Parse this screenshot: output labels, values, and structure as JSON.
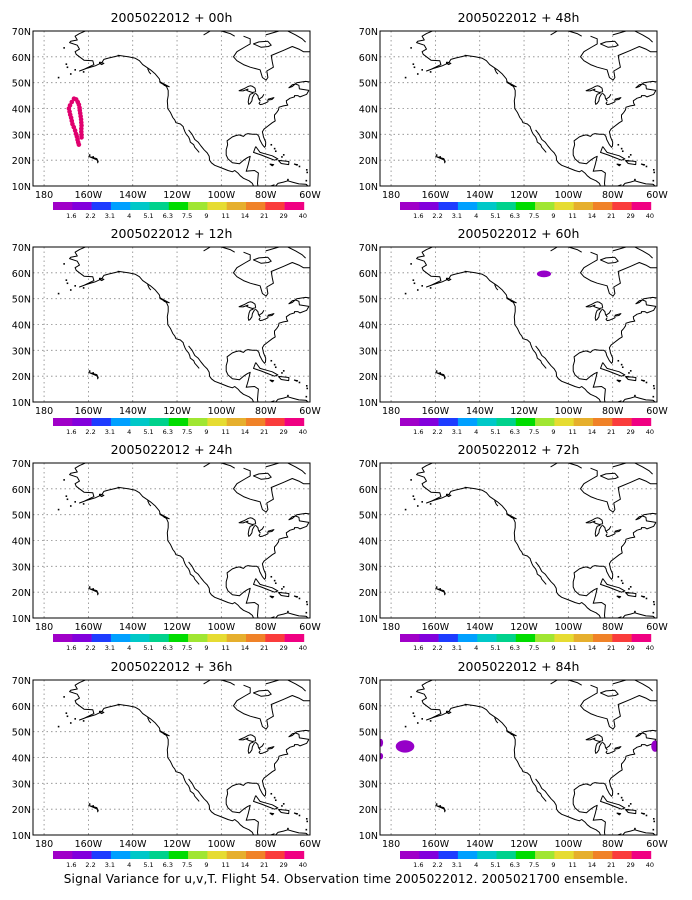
{
  "footer": "Signal Variance for u,v,T. Flight 54. Observation time 2005022012. 2005021700 ensemble.",
  "colors": {
    "background": "#ffffff",
    "coast": "#000000",
    "grid": "#888888",
    "scale": [
      "#a000c8",
      "#8200dc",
      "#1e3cff",
      "#00a0ff",
      "#00c8c8",
      "#00d28c",
      "#00dc00",
      "#a0e632",
      "#e6dc32",
      "#e6af2d",
      "#f08228",
      "#fa3c3c",
      "#f00082"
    ]
  },
  "map": {
    "lat_labels": [
      "70N",
      "60N",
      "50N",
      "40N",
      "30N",
      "20N",
      "10N"
    ],
    "lon_labels": [
      "180",
      "160W",
      "140W",
      "120W",
      "100W",
      "80W",
      "60W"
    ],
    "lon_label_values": [
      180,
      160,
      140,
      120,
      100,
      80,
      60
    ],
    "lat_range": [
      10,
      70
    ],
    "lon_range": [
      185,
      60
    ],
    "scale_labels": [
      "1.6",
      "2.2",
      "3.1",
      "4",
      "5.1",
      "6.3",
      "7.5",
      "9",
      "11",
      "14",
      "21",
      "29",
      "40"
    ]
  },
  "panels": [
    {
      "title": "2005022012 + 00h",
      "color": "#e0006e",
      "features": [
        {
          "kind": "dots",
          "points": [
            [
              43.8,
              166.5
            ],
            [
              43.5,
              165.5
            ],
            [
              42.5,
              164.8
            ],
            [
              41.5,
              164.3
            ],
            [
              40.3,
              164
            ],
            [
              39.3,
              163.9
            ],
            [
              38.2,
              163.7
            ],
            [
              37,
              163.5
            ],
            [
              35.8,
              163.3
            ],
            [
              34.6,
              163.2
            ],
            [
              33.4,
              163.1
            ],
            [
              32.2,
              163.2
            ],
            [
              31,
              163.2
            ],
            [
              29.8,
              163.1
            ],
            [
              28.8,
              163.1
            ],
            [
              42.5,
              167.5
            ],
            [
              41.2,
              168.3
            ],
            [
              40,
              168.8
            ],
            [
              38.8,
              168.5
            ],
            [
              37.6,
              168.2
            ],
            [
              36.4,
              167.8
            ],
            [
              35.2,
              167.5
            ],
            [
              34,
              167.2
            ],
            [
              32.8,
              166.6
            ],
            [
              31.5,
              166
            ],
            [
              30.2,
              165.6
            ],
            [
              29.1,
              165.2
            ],
            [
              27.9,
              164.9
            ],
            [
              26.9,
              164.6
            ],
            [
              26,
              164.3
            ]
          ]
        }
      ]
    },
    {
      "title": "2005022012 + 48h",
      "color": "#9600c8",
      "features": []
    },
    {
      "title": "2005022012 + 12h",
      "color": "#9600c8",
      "features": []
    },
    {
      "title": "2005022012 + 60h",
      "color": "#9600c8",
      "features": [
        {
          "kind": "blob",
          "lat": 59.6,
          "lon": 111,
          "rlat": 1.3,
          "rlon": 3.2
        }
      ]
    },
    {
      "title": "2005022012 + 24h",
      "color": "#9600c8",
      "features": []
    },
    {
      "title": "2005022012 + 72h",
      "color": "#9600c8",
      "features": []
    },
    {
      "title": "2005022012 + 36h",
      "color": "#9600c8",
      "features": []
    },
    {
      "title": "2005022012 + 84h",
      "color": "#9600c8",
      "features": [
        {
          "kind": "blob",
          "lat": 44.3,
          "lon": 173.7,
          "rlat": 2.4,
          "rlon": 4.2
        },
        {
          "kind": "blob",
          "lat": 45.7,
          "lon": 184.5,
          "rlat": 1.5,
          "rlon": 0.9
        },
        {
          "kind": "blob",
          "lat": 40.5,
          "lon": 184.5,
          "rlat": 1.2,
          "rlon": 0.9
        },
        {
          "kind": "blob",
          "lat": 44.4,
          "lon": 60.9,
          "rlat": 2.2,
          "rlon": 1.7
        }
      ]
    }
  ]
}
